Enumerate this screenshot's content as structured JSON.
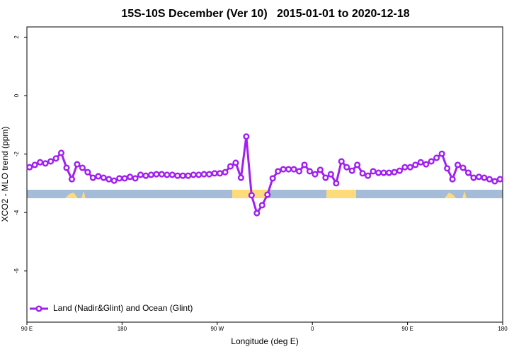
{
  "chart_data": {
    "type": "line",
    "title": "15S-10S December (Ver 10)   2015-01-01 to 2020-12-18",
    "x_label": "Longitude (deg E)",
    "y_label": "XCO2 - MLO trend (ppm)",
    "xlim": [
      90,
      540
    ],
    "xticks": [
      {
        "value": 90,
        "label": "90 E"
      },
      180,
      {
        "value": 270,
        "label": "90 W"
      },
      {
        "value": 360,
        "label": "0"
      },
      {
        "value": 450,
        "label": "90 E"
      },
      {
        "value": 540,
        "label": "180"
      }
    ],
    "ylim": [
      -7.75,
      2.35
    ],
    "yticks": [
      -6,
      -4,
      -2,
      0,
      2
    ],
    "legend": "bottom-left",
    "x": [
      92.5,
      97.5,
      102.5,
      107.5,
      112.5,
      117.5,
      122.5,
      127.5,
      132.5,
      137.5,
      142.5,
      147.5,
      152.5,
      157.5,
      162.5,
      167.5,
      172.5,
      177.5,
      182.5,
      187.5,
      192.5,
      197.5,
      202.5,
      207.5,
      212.5,
      217.5,
      222.5,
      227.5,
      232.5,
      237.5,
      242.5,
      247.5,
      252.5,
      257.5,
      262.5,
      267.5,
      272.5,
      277.5,
      282.5,
      287.5,
      292.5,
      297.5,
      302.5,
      307.5,
      312.5,
      317.5,
      322.5,
      327.5,
      332.5,
      337.5,
      342.5,
      347.5,
      352.5,
      357.5,
      362.5,
      367.5,
      372.5,
      377.5,
      382.5,
      387.5,
      392.5,
      397.5,
      402.5,
      407.5,
      412.5,
      417.5,
      422.5,
      427.5,
      432.5,
      437.5,
      442.5,
      447.5,
      452.5,
      457.5,
      462.5,
      467.5,
      472.5,
      477.5,
      482.5,
      487.5,
      492.5,
      497.5,
      502.5,
      507.5,
      512.5,
      517.5,
      522.5,
      527.5,
      532.5,
      537.5
    ],
    "series": [
      {
        "name": "Land (Nadir&Glint) and Ocean (Glint)",
        "color": "#a020f0",
        "values": [
          -2.45,
          -2.37,
          -2.28,
          -2.32,
          -2.25,
          -2.15,
          -1.96,
          -2.47,
          -2.86,
          -2.35,
          -2.47,
          -2.62,
          -2.81,
          -2.76,
          -2.81,
          -2.86,
          -2.91,
          -2.83,
          -2.83,
          -2.78,
          -2.83,
          -2.71,
          -2.74,
          -2.71,
          -2.69,
          -2.69,
          -2.71,
          -2.71,
          -2.74,
          -2.74,
          -2.74,
          -2.71,
          -2.71,
          -2.69,
          -2.69,
          -2.66,
          -2.66,
          -2.62,
          -2.42,
          -2.3,
          -2.81,
          -1.4,
          -3.41,
          -4.02,
          -3.75,
          -3.39,
          -2.83,
          -2.59,
          -2.52,
          -2.52,
          -2.52,
          -2.59,
          -2.37,
          -2.59,
          -2.69,
          -2.54,
          -2.81,
          -2.69,
          -3.0,
          -2.25,
          -2.45,
          -2.57,
          -2.37,
          -2.66,
          -2.74,
          -2.59,
          -2.64,
          -2.64,
          -2.64,
          -2.62,
          -2.57,
          -2.45,
          -2.45,
          -2.37,
          -2.28,
          -2.35,
          -2.25,
          -2.13,
          -1.99,
          -2.49,
          -2.86,
          -2.37,
          -2.47,
          -2.64,
          -2.81,
          -2.78,
          -2.81,
          -2.86,
          -2.93,
          -2.86
        ]
      }
    ]
  }
}
